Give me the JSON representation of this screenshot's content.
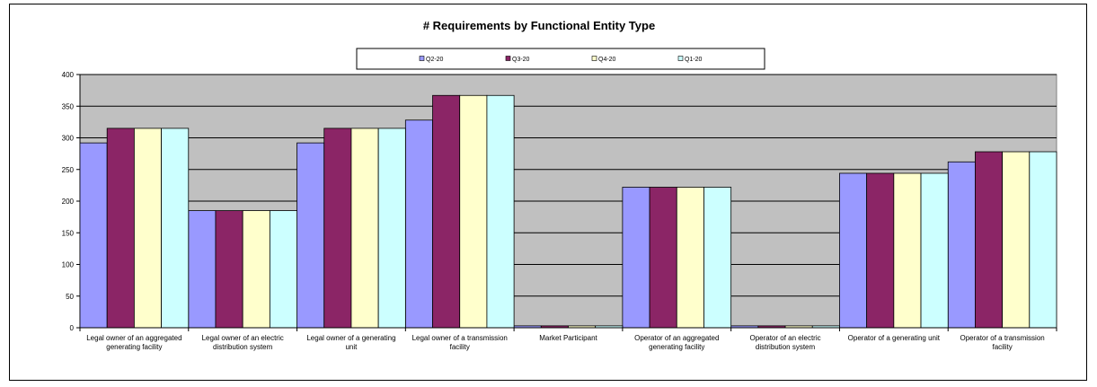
{
  "chart_data": {
    "type": "bar",
    "title": "# Requirements by Functional Entity Type",
    "xlabel": "",
    "ylabel": "",
    "ylim": [
      0,
      400
    ],
    "yticks": [
      0,
      50,
      100,
      150,
      200,
      250,
      300,
      350,
      400
    ],
    "grid": true,
    "legend_position": "top",
    "categories": [
      [
        "Legal owner of an aggregated",
        "generating facility"
      ],
      [
        "Legal owner of an electric",
        "distribution system"
      ],
      [
        "Legal owner of a generating",
        "unit"
      ],
      [
        "Legal owner of a transmission",
        "facility"
      ],
      [
        "Market Participant"
      ],
      [
        "Operator of an aggregated",
        "generating facility"
      ],
      [
        "Operator of an electric",
        "distribution system"
      ],
      [
        "Operator of a generating unit"
      ],
      [
        "Operator of a transmission",
        "facility"
      ]
    ],
    "series": [
      {
        "name": "Q2-20",
        "color": "#9999ff",
        "values": [
          292,
          185,
          292,
          328,
          3,
          222,
          3,
          244,
          262
        ]
      },
      {
        "name": "Q3-20",
        "color": "#8b2566",
        "values": [
          315,
          185,
          315,
          367,
          3,
          222,
          3,
          244,
          278
        ]
      },
      {
        "name": "Q4-20",
        "color": "#ffffcc",
        "values": [
          315,
          185,
          315,
          367,
          3,
          222,
          3,
          244,
          278
        ]
      },
      {
        "name": "Q1-20",
        "color": "#ccffff",
        "values": [
          315,
          185,
          315,
          367,
          3,
          222,
          3,
          244,
          278
        ]
      }
    ],
    "plot_background": "#c0c0c0"
  }
}
